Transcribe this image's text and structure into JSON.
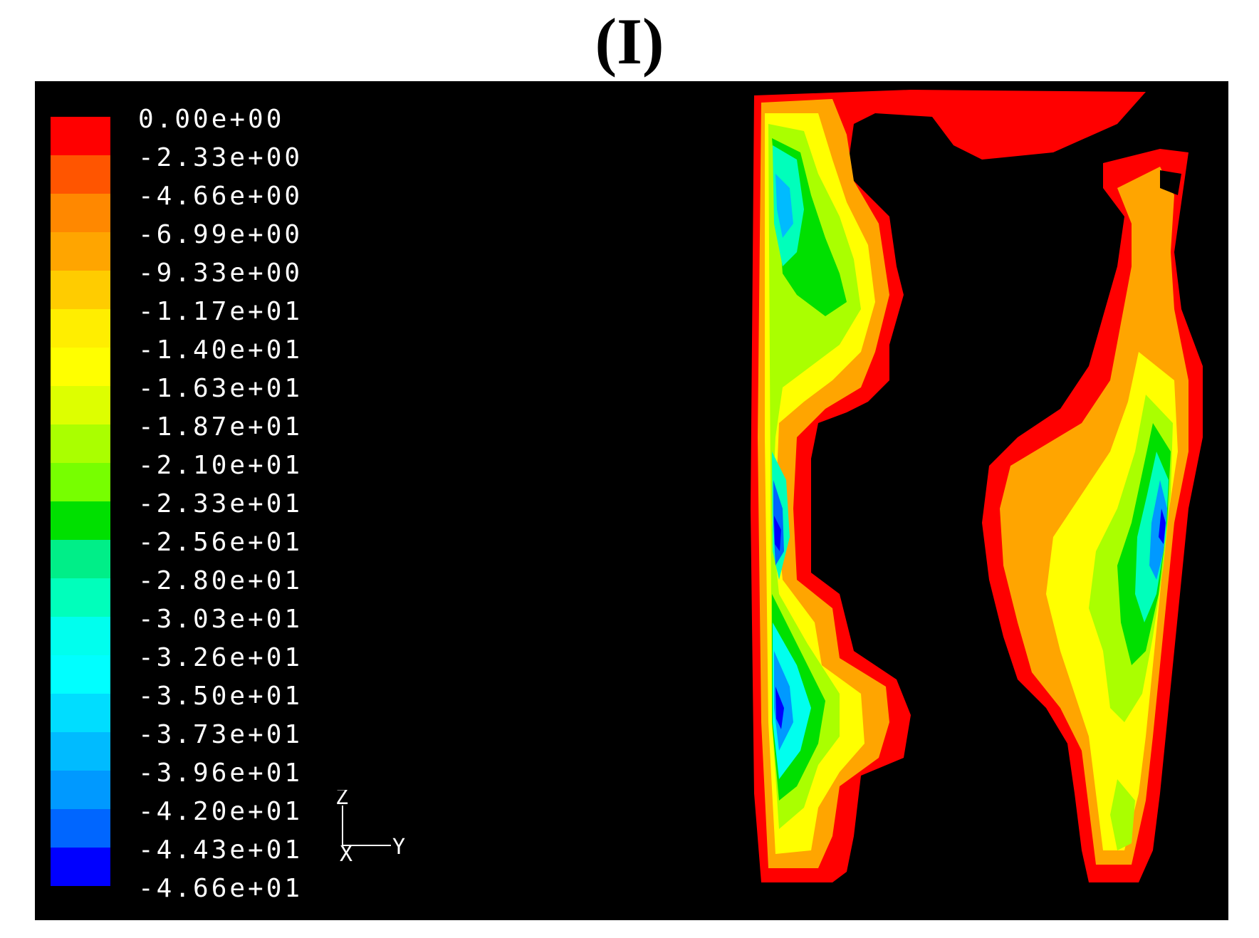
{
  "title": "(I)",
  "legend": {
    "labels": [
      "0.00e+00",
      "-2.33e+00",
      "-4.66e+00",
      "-6.99e+00",
      "-9.33e+00",
      "-1.17e+01",
      "-1.40e+01",
      "-1.63e+01",
      "-1.87e+01",
      "-2.10e+01",
      "-2.33e+01",
      "-2.56e+01",
      "-2.80e+01",
      "-3.03e+01",
      "-3.26e+01",
      "-3.50e+01",
      "-3.73e+01",
      "-3.96e+01",
      "-4.20e+01",
      "-4.43e+01",
      "-4.66e+01"
    ],
    "colors": [
      "#ff0000",
      "#ff5500",
      "#ff8800",
      "#ffa500",
      "#ffcc00",
      "#ffee00",
      "#ffff00",
      "#ddff00",
      "#aaff00",
      "#77ff00",
      "#00e000",
      "#00ee88",
      "#00ffbb",
      "#00ffee",
      "#00ffff",
      "#00ddff",
      "#00bbff",
      "#0099ff",
      "#0066ff",
      "#0000ff"
    ]
  },
  "axes": {
    "z": "Z",
    "y": "Y",
    "x": "X"
  }
}
